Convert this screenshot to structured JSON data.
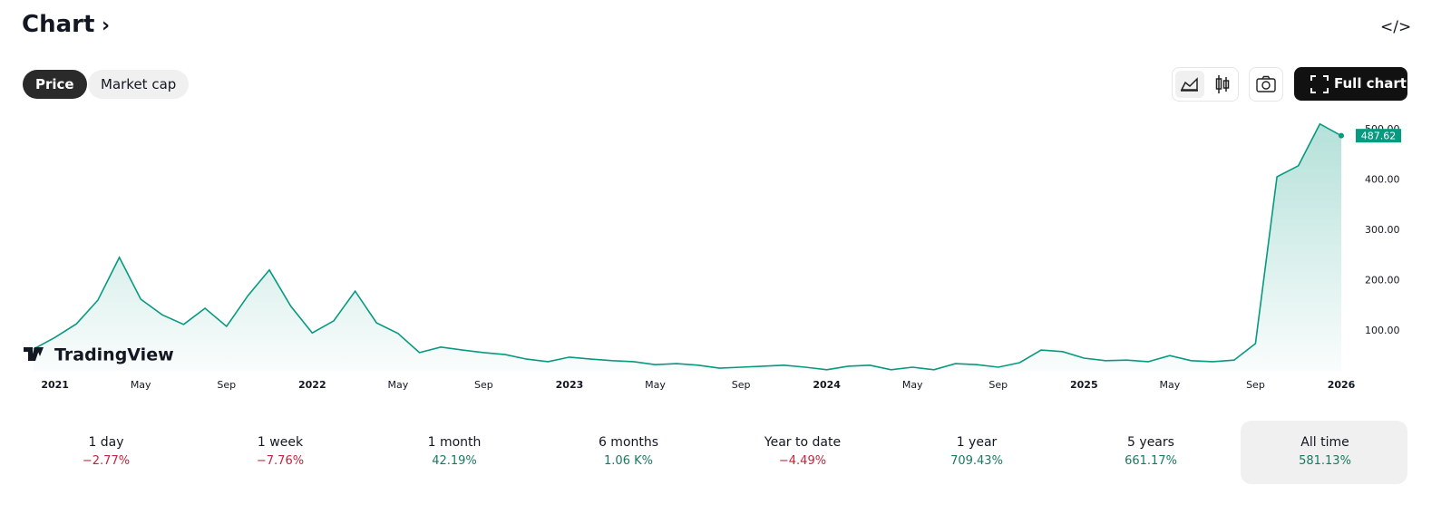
{
  "header": {
    "title": "Chart",
    "embed_icon": "</>"
  },
  "tabs": [
    "Price",
    "Market cap"
  ],
  "toolbar": {
    "full_chart": "Full chart"
  },
  "watermark": "TradingView",
  "chart_data": {
    "type": "area",
    "categories": [
      null,
      "2021",
      null,
      null,
      null,
      "May",
      null,
      null,
      null,
      "Sep",
      null,
      null,
      null,
      "2022",
      null,
      null,
      null,
      "May",
      null,
      null,
      null,
      "Sep",
      null,
      null,
      null,
      "2023",
      null,
      null,
      null,
      "May",
      null,
      null,
      null,
      "Sep",
      null,
      null,
      null,
      "2024",
      null,
      null,
      null,
      "May",
      null,
      null,
      null,
      "Sep",
      null,
      null,
      null,
      "2025",
      null,
      null,
      null,
      "May",
      null,
      null,
      null,
      "Sep",
      null,
      null,
      null,
      "2026"
    ],
    "values": [
      64,
      87,
      114,
      161,
      246,
      163,
      132,
      113,
      145,
      109,
      170,
      221,
      149,
      96,
      120,
      179,
      116,
      95,
      57,
      68,
      62,
      57,
      53,
      44,
      39,
      48,
      44,
      41,
      39,
      33,
      35,
      32,
      26,
      28,
      30,
      32,
      28,
      23,
      30,
      32,
      23,
      28,
      23,
      35,
      33,
      28,
      37,
      62,
      59,
      46,
      41,
      42,
      39,
      51,
      41,
      39,
      42,
      75,
      406,
      428,
      511,
      487.62
    ],
    "color": "#089981",
    "ylim": [
      19,
      523
    ],
    "yticks": [
      {
        "value": 100,
        "label": "100.00"
      },
      {
        "value": 200,
        "label": "200.00"
      },
      {
        "value": 300,
        "label": "300.00"
      },
      {
        "value": 400,
        "label": "400.00"
      },
      {
        "value": 500,
        "label": "500.00"
      }
    ],
    "grid": false
  },
  "performance": {
    "periods": [
      {
        "label": "1 day",
        "change": "−2.77%",
        "color": "#c2253b"
      },
      {
        "label": "1 week",
        "change": "−7.76%",
        "color": "#c2253b"
      },
      {
        "label": "1 month",
        "change": "42.19%",
        "color": "#1a7a5e"
      },
      {
        "label": "6 months",
        "change": "1.06 K%",
        "color": "#1a7a5e"
      },
      {
        "label": "Year to date",
        "change": "−4.49%",
        "color": "#c2253b"
      },
      {
        "label": "1 year",
        "change": "709.43%",
        "color": "#1a7a5e"
      },
      {
        "label": "5 years",
        "change": "661.17%",
        "color": "#1a7a5e"
      },
      {
        "label": "All time",
        "change": "581.13%",
        "color": "#1a7a5e"
      }
    ]
  }
}
